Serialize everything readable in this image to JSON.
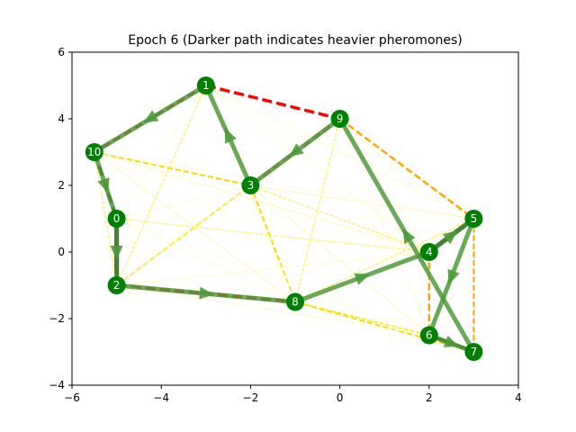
{
  "chart_data": {
    "type": "scatter",
    "title": "Epoch 6 (Darker path indicates heavier pheromones)",
    "xlim": [
      -6,
      4
    ],
    "ylim": [
      -4,
      6
    ],
    "xticks": [
      -6,
      -4,
      -2,
      0,
      2,
      4
    ],
    "yticks": [
      -4,
      -2,
      0,
      2,
      4,
      6
    ],
    "grid": false,
    "node_color": "#008000",
    "nodes": [
      {
        "label": "0",
        "x": -5.0,
        "y": 1.0
      },
      {
        "label": "1",
        "x": -3.0,
        "y": 5.0
      },
      {
        "label": "2",
        "x": -5.0,
        "y": -1.0
      },
      {
        "label": "3",
        "x": -2.0,
        "y": 2.0
      },
      {
        "label": "4",
        "x": 2.0,
        "y": 0.0
      },
      {
        "label": "5",
        "x": 3.0,
        "y": 1.0
      },
      {
        "label": "6",
        "x": 2.0,
        "y": -2.5
      },
      {
        "label": "7",
        "x": 3.0,
        "y": -3.0
      },
      {
        "label": "8",
        "x": -1.0,
        "y": -1.5
      },
      {
        "label": "9",
        "x": 0.0,
        "y": 4.0
      },
      {
        "label": "10",
        "x": -5.5,
        "y": 3.0
      }
    ],
    "pheromone_edges": [
      {
        "from": 1,
        "to": 9,
        "color": "#ff0000",
        "width": 3.5,
        "dashed": true
      },
      {
        "from": 2,
        "to": 8,
        "color": "#ff0000",
        "width": 3.5,
        "dashed": true
      },
      {
        "from": 1,
        "to": 10,
        "color": "#ff0000",
        "width": 3,
        "dashed": true
      },
      {
        "from": 9,
        "to": 3,
        "color": "#ff0000",
        "width": 3,
        "dashed": true
      },
      {
        "from": 0,
        "to": 2,
        "color": "#000000",
        "width": 5,
        "dashed": false
      },
      {
        "from": 4,
        "to": 5,
        "color": "#000000",
        "width": 5,
        "dashed": false
      },
      {
        "from": 6,
        "to": 7,
        "color": "#2a2a2a",
        "width": 4,
        "dashed": false
      },
      {
        "from": 10,
        "to": 0,
        "color": "#3a2a00",
        "width": 3.5,
        "dashed": true
      },
      {
        "from": 9,
        "to": 5,
        "color": "#ffa500",
        "width": 2.5,
        "dashed": true
      },
      {
        "from": 4,
        "to": 6,
        "color": "#ffa500",
        "width": 2.5,
        "dashed": true
      },
      {
        "from": 5,
        "to": 7,
        "color": "#ffa500",
        "width": 2,
        "dashed": true
      },
      {
        "from": 10,
        "to": 3,
        "color": "#ffd700",
        "width": 2,
        "dashed": true
      },
      {
        "from": 2,
        "to": 3,
        "color": "#ffd700",
        "width": 2,
        "dashed": true
      },
      {
        "from": 3,
        "to": 8,
        "color": "#ffd700",
        "width": 2,
        "dashed": true
      },
      {
        "from": 8,
        "to": 7,
        "color": "#ffd700",
        "width": 2,
        "dashed": true
      },
      {
        "from": 8,
        "to": 6,
        "color": "#ffe600",
        "width": 1.5,
        "dashed": true
      },
      {
        "from": 0,
        "to": 4,
        "color": "#fff066",
        "width": 1.2,
        "dashed": true
      },
      {
        "from": 2,
        "to": 1,
        "color": "#ffee55",
        "width": 1.2,
        "dashed": true
      },
      {
        "from": 9,
        "to": 8,
        "color": "#ffee55",
        "width": 1.2,
        "dashed": true
      },
      {
        "from": 3,
        "to": 4,
        "color": "#ffee55",
        "width": 1.2,
        "dashed": true
      },
      {
        "from": 10,
        "to": 2,
        "color": "#ffee55",
        "width": 1.2,
        "dashed": true
      },
      {
        "from": 8,
        "to": 5,
        "color": "#ffee55",
        "width": 1.2,
        "dashed": true
      },
      {
        "from": 1,
        "to": 3,
        "color": "#fff28a",
        "width": 1,
        "dashed": false
      },
      {
        "from": 10,
        "to": 4,
        "color": "#fff6a8",
        "width": 0.8,
        "dashed": false
      },
      {
        "from": 10,
        "to": 8,
        "color": "#fff6a8",
        "width": 0.8,
        "dashed": false
      },
      {
        "from": 1,
        "to": 8,
        "color": "#fff6a8",
        "width": 0.8,
        "dashed": false
      },
      {
        "from": 9,
        "to": 2,
        "color": "#fff6a8",
        "width": 0.8,
        "dashed": false
      },
      {
        "from": 3,
        "to": 5,
        "color": "#fff6a8",
        "width": 0.8,
        "dashed": false
      },
      {
        "from": 3,
        "to": 6,
        "color": "#fff6a8",
        "width": 0.8,
        "dashed": false
      },
      {
        "from": 1,
        "to": 4,
        "color": "#fff8bb",
        "width": 0.7,
        "dashed": false
      },
      {
        "from": 1,
        "to": 5,
        "color": "#fff8bb",
        "width": 0.7,
        "dashed": false
      },
      {
        "from": 9,
        "to": 4,
        "color": "#fff8bb",
        "width": 0.7,
        "dashed": false
      },
      {
        "from": 9,
        "to": 6,
        "color": "#fff8bb",
        "width": 0.7,
        "dashed": false
      },
      {
        "from": 0,
        "to": 8,
        "color": "#fff8bb",
        "width": 0.7,
        "dashed": false
      },
      {
        "from": 0,
        "to": 3,
        "color": "#fff8bb",
        "width": 0.7,
        "dashed": false
      },
      {
        "from": 2,
        "to": 4,
        "color": "#fff8bb",
        "width": 0.7,
        "dashed": false
      },
      {
        "from": 2,
        "to": 6,
        "color": "#fff8bb",
        "width": 0.7,
        "dashed": false
      },
      {
        "from": 10,
        "to": 5,
        "color": "#fffacc",
        "width": 0.6,
        "dashed": false
      },
      {
        "from": 0,
        "to": 5,
        "color": "#fffacc",
        "width": 0.6,
        "dashed": false
      },
      {
        "from": 0,
        "to": 6,
        "color": "#fffacc",
        "width": 0.6,
        "dashed": false
      },
      {
        "from": 1,
        "to": 0,
        "color": "#fffacc",
        "width": 0.6,
        "dashed": false
      },
      {
        "from": 9,
        "to": 7,
        "color": "#fffacc",
        "width": 0.6,
        "dashed": false
      },
      {
        "from": 8,
        "to": 4,
        "color": "#fffacc",
        "width": 0.6,
        "dashed": false
      }
    ],
    "tour_arrows": [
      {
        "from": 10,
        "to": 0
      },
      {
        "from": 0,
        "to": 2
      },
      {
        "from": 2,
        "to": 8
      },
      {
        "from": 8,
        "to": 4
      },
      {
        "from": 4,
        "to": 5
      },
      {
        "from": 5,
        "to": 6
      },
      {
        "from": 6,
        "to": 7
      },
      {
        "from": 7,
        "to": 9
      },
      {
        "from": 9,
        "to": 3
      },
      {
        "from": 3,
        "to": 1
      },
      {
        "from": 1,
        "to": 10
      }
    ],
    "tour_color": "#4f9a3c"
  }
}
